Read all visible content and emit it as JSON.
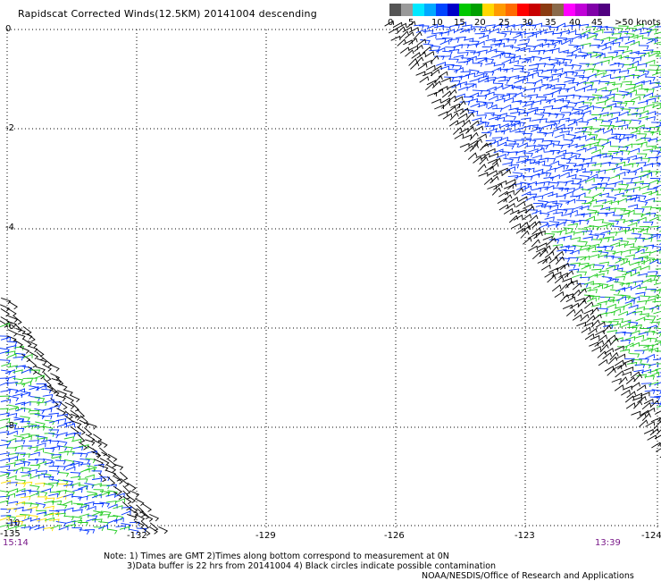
{
  "title": "Rapidscat Corrected Winds(12.5KM) 20141004 descending",
  "color_scale": {
    "colors": [
      "#555555",
      "#9a9a9a",
      "#00e8ff",
      "#00a8ff",
      "#0044ff",
      "#0000c8",
      "#00c800",
      "#00a000",
      "#ffd800",
      "#ff9a00",
      "#ff6a00",
      "#ff0000",
      "#c80000",
      "#8a3a10",
      "#8a6a4a",
      "#ff00ff",
      "#c000d8",
      "#8000a8",
      "#500080"
    ],
    "labels": [
      "0",
      "5",
      "10",
      "15",
      "20",
      "25",
      "30",
      "35",
      "40",
      "45",
      ">50 knots"
    ]
  },
  "x_axis": {
    "labels": [
      "-135",
      "-132",
      "-129",
      "-126",
      "-123",
      "-124"
    ]
  },
  "y_axis": {
    "labels": [
      "0",
      "-2",
      "-4",
      "-6",
      "-8",
      "-10"
    ]
  },
  "times": {
    "left": "15:14",
    "right": "13:39"
  },
  "notes": {
    "line1": "Note: 1) Times are GMT 2)Times along bottom correspond to measurement at 0N",
    "line2": "3)Data buffer is 22 hrs from 20141004 4) Black circles indicate possible contamination",
    "line3": "NOAA/NESDIS/Office of Research and Applications"
  },
  "wind_colors": {
    "low": "#000000",
    "mid": "#0033ff",
    "high": "#22cc22",
    "vhigh": "#ffe000"
  }
}
